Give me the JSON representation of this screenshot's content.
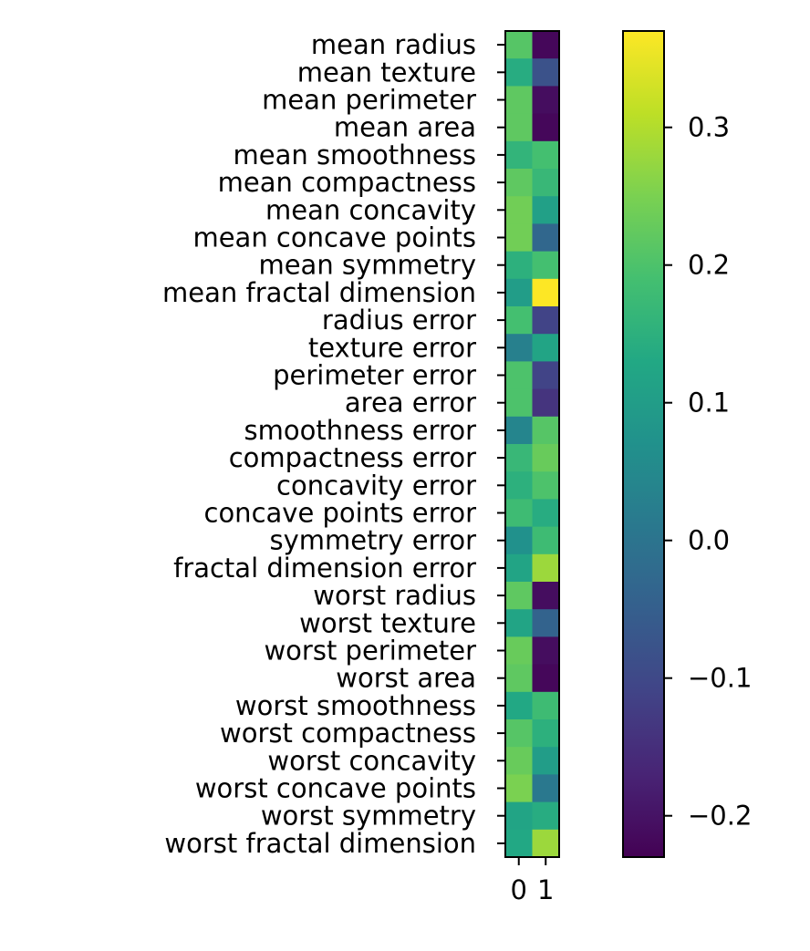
{
  "chart_data": {
    "type": "heatmap",
    "title": "",
    "xlabel": "",
    "ylabel": "",
    "x_categories": [
      "0",
      "1"
    ],
    "y_categories": [
      "mean radius",
      "mean texture",
      "mean perimeter",
      "mean area",
      "mean smoothness",
      "mean compactness",
      "mean concavity",
      "mean concave points",
      "mean symmetry",
      "mean fractal dimension",
      "radius error",
      "texture error",
      "perimeter error",
      "area error",
      "smoothness error",
      "compactness error",
      "concavity error",
      "concave points error",
      "symmetry error",
      "fractal dimension error",
      "worst radius",
      "worst texture",
      "worst perimeter",
      "worst area",
      "worst smoothness",
      "worst compactness",
      "worst concavity",
      "worst concave points",
      "worst symmetry",
      "worst fractal dimension"
    ],
    "values": [
      [
        0.21,
        -0.22
      ],
      [
        0.14,
        -0.08
      ],
      [
        0.22,
        -0.21
      ],
      [
        0.22,
        -0.22
      ],
      [
        0.16,
        0.19
      ],
      [
        0.22,
        0.17
      ],
      [
        0.24,
        0.11
      ],
      [
        0.24,
        -0.03
      ],
      [
        0.15,
        0.19
      ],
      [
        0.1,
        0.37
      ],
      [
        0.19,
        -0.11
      ],
      [
        0.03,
        0.12
      ],
      [
        0.2,
        -0.11
      ],
      [
        0.2,
        -0.14
      ],
      [
        0.04,
        0.21
      ],
      [
        0.17,
        0.23
      ],
      [
        0.15,
        0.2
      ],
      [
        0.18,
        0.14
      ],
      [
        0.07,
        0.18
      ],
      [
        0.12,
        0.28
      ],
      [
        0.22,
        -0.21
      ],
      [
        0.12,
        -0.04
      ],
      [
        0.23,
        -0.21
      ],
      [
        0.22,
        -0.22
      ],
      [
        0.13,
        0.18
      ],
      [
        0.21,
        0.15
      ],
      [
        0.23,
        0.1
      ],
      [
        0.25,
        0.01
      ],
      [
        0.12,
        0.14
      ],
      [
        0.13,
        0.28
      ]
    ],
    "colormap": "viridis",
    "color_range": [
      -0.23,
      0.37
    ],
    "colorbar_ticks": [
      -0.2,
      -0.1,
      0.0,
      0.1,
      0.2,
      0.3
    ],
    "colorbar_tick_labels": [
      "−0.2",
      "−0.1",
      "0.0",
      "0.1",
      "0.2",
      "0.3"
    ],
    "grid": false,
    "legend": "colorbar-right"
  }
}
